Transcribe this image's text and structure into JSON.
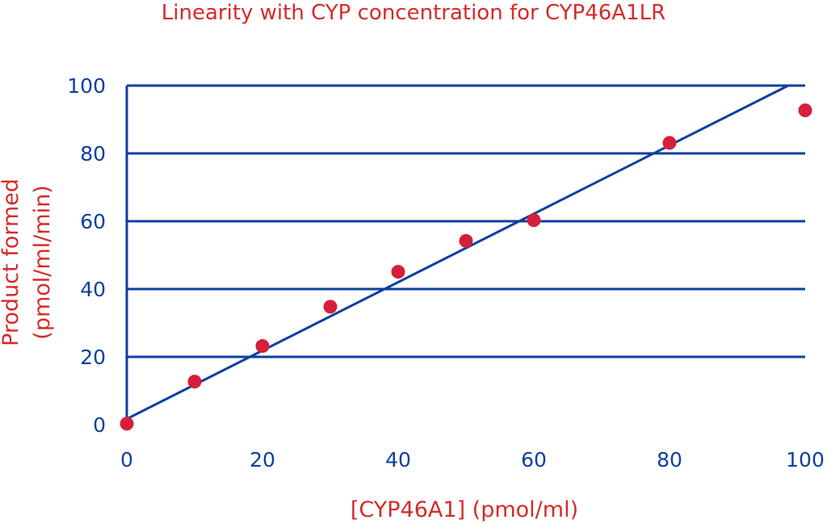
{
  "chart_data": {
    "type": "scatter",
    "title": "Linearity with CYP concentration for CYP46A1LR",
    "xlabel": "[CYP46A1] (pmol/ml)",
    "ylabel_lines": [
      "Product formed",
      "(pmol/ml/min)"
    ],
    "xlim": [
      0,
      100
    ],
    "ylim": [
      0,
      100
    ],
    "xticks": [
      "0",
      "20",
      "40",
      "60",
      "80",
      "100"
    ],
    "yticks": [
      "0",
      "20",
      "40",
      "60",
      "80",
      "100"
    ],
    "grid": "horizontal",
    "x": [
      0,
      10,
      20,
      30,
      40,
      50,
      60,
      80,
      100
    ],
    "y": [
      0.3,
      12.7,
      23.2,
      34.8,
      45.1,
      54.2,
      60.3,
      83.1,
      92.7
    ],
    "trendline": {
      "x": [
        0,
        97.5
      ],
      "y": [
        1.7,
        100
      ]
    },
    "colors": {
      "axis": "#0d3fa0",
      "text_accent": "#d62a2a",
      "points": "#d61f3a"
    }
  }
}
